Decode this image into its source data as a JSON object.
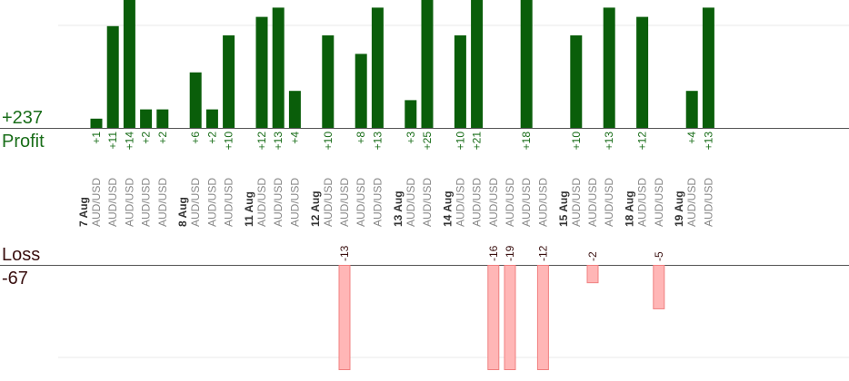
{
  "profit": {
    "total_label": "+237",
    "label": "Profit"
  },
  "loss": {
    "label": "Loss",
    "total_label": "-67"
  },
  "colors": {
    "profit_bar": "#0a5e0a",
    "profit_text": "#1a6e1a",
    "loss_bar": "#ffb6b6",
    "loss_stroke": "#f08080",
    "loss_text": "#3a1010",
    "date_text": "#333333",
    "pair_text": "#888888",
    "grid": "#e8e8e8",
    "axis": "#555555"
  },
  "chart_data": {
    "type": "bar",
    "title": "",
    "profit_ylim": [
      0,
      12.5
    ],
    "loss_ylim": [
      -20,
      0
    ],
    "groups": [
      {
        "date": "7 Aug",
        "trades": [
          {
            "pair": "AUD/USD",
            "value": 1,
            "label": "+1"
          },
          {
            "pair": "AUD/USD",
            "value": 11,
            "label": "+11"
          },
          {
            "pair": "AUD/USD",
            "value": 14,
            "label": "+14"
          },
          {
            "pair": "AUD/USD",
            "value": 2,
            "label": "+2"
          },
          {
            "pair": "AUD/USD",
            "value": 2,
            "label": "+2"
          }
        ]
      },
      {
        "date": "8 Aug",
        "trades": [
          {
            "pair": "AUD/USD",
            "value": 6,
            "label": "+6"
          },
          {
            "pair": "AUD/USD",
            "value": 2,
            "label": "+2"
          },
          {
            "pair": "AUD/USD",
            "value": 10,
            "label": "+10"
          }
        ]
      },
      {
        "date": "11 Aug",
        "trades": [
          {
            "pair": "AUD/USD",
            "value": 12,
            "label": "+12"
          },
          {
            "pair": "AUD/USD",
            "value": 13,
            "label": "+13"
          },
          {
            "pair": "AUD/USD",
            "value": 4,
            "label": "+4"
          }
        ]
      },
      {
        "date": "12 Aug",
        "trades": [
          {
            "pair": "AUD/USD",
            "value": 10,
            "label": "+10"
          },
          {
            "pair": "AUD/USD",
            "value": -13,
            "label": "-13"
          },
          {
            "pair": "AUD/USD",
            "value": 8,
            "label": "+8"
          },
          {
            "pair": "AUD/USD",
            "value": 13,
            "label": "+13"
          }
        ]
      },
      {
        "date": "13 Aug",
        "trades": [
          {
            "pair": "AUD/USD",
            "value": 3,
            "label": "+3"
          },
          {
            "pair": "AUD/USD",
            "value": 25,
            "label": "+25"
          }
        ]
      },
      {
        "date": "14 Aug",
        "trades": [
          {
            "pair": "AUD/USD",
            "value": 10,
            "label": "+10"
          },
          {
            "pair": "AUD/USD",
            "value": 21,
            "label": "+21"
          },
          {
            "pair": "AUD/USD",
            "value": -16,
            "label": "-16"
          },
          {
            "pair": "AUD/USD",
            "value": -19,
            "label": "-19"
          },
          {
            "pair": "AUD/USD",
            "value": 18,
            "label": "+18"
          },
          {
            "pair": "AUD/USD",
            "value": -12,
            "label": "-12"
          }
        ]
      },
      {
        "date": "15 Aug",
        "trades": [
          {
            "pair": "AUD/USD",
            "value": 10,
            "label": "+10"
          },
          {
            "pair": "AUD/USD",
            "value": -2,
            "label": "-2"
          },
          {
            "pair": "AUD/USD",
            "value": 13,
            "label": "+13"
          }
        ]
      },
      {
        "date": "18 Aug",
        "trades": [
          {
            "pair": "AUD/USD",
            "value": 12,
            "label": "+12"
          },
          {
            "pair": "AUD/USD",
            "value": -5,
            "label": "-5"
          }
        ]
      },
      {
        "date": "19 Aug",
        "trades": [
          {
            "pair": "AUD/USD",
            "value": 4,
            "label": "+4"
          },
          {
            "pair": "AUD/USD",
            "value": 13,
            "label": "+13"
          }
        ]
      }
    ]
  }
}
